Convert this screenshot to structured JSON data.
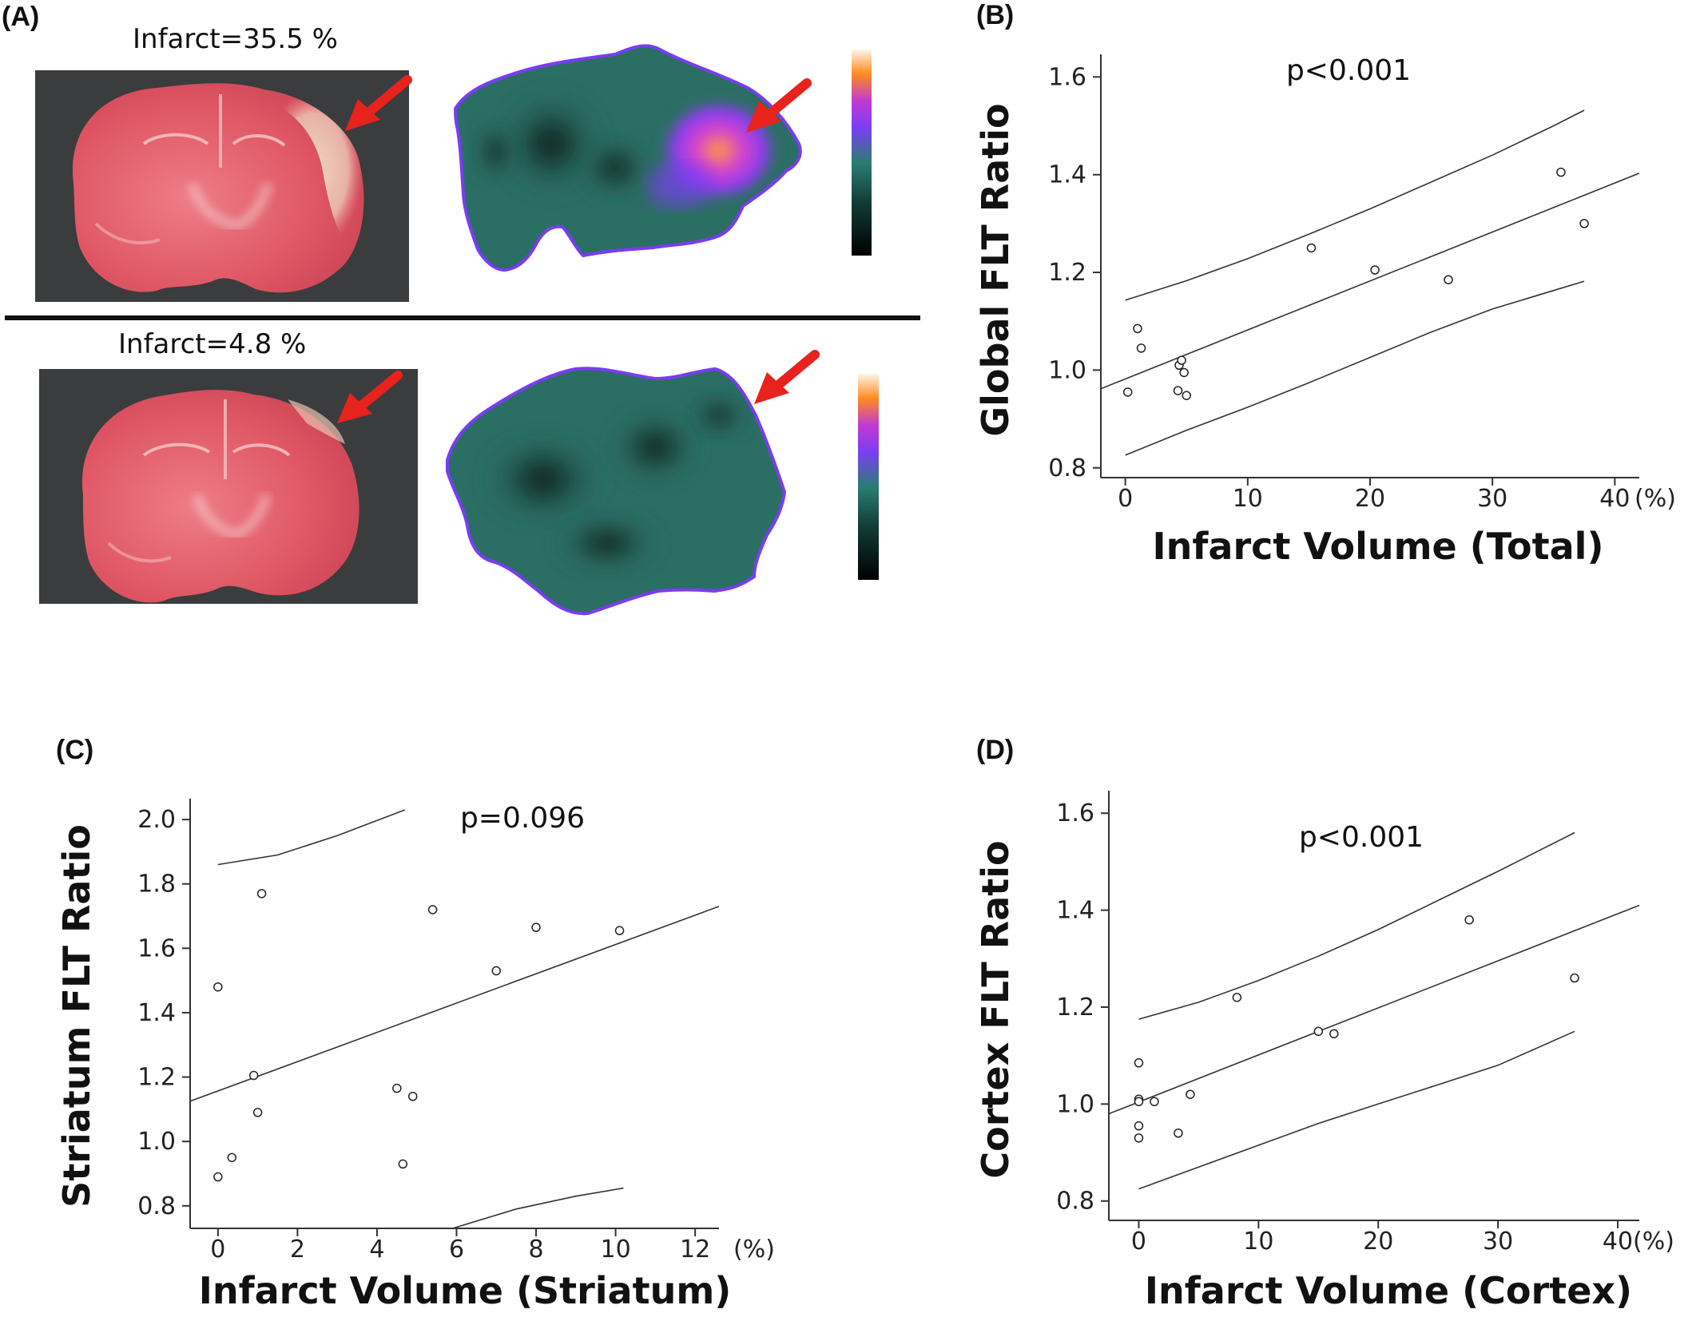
{
  "panels": {
    "A": {
      "label": "(A)",
      "top_caption": "Infarct=35.5 %",
      "bottom_caption": "Infarct=4.8 %"
    }
  },
  "colors": {
    "tissue": "#e05866",
    "arrow": "#e8221c",
    "pet_low": "#0b1512",
    "pet_mid": "#2a6b62",
    "pet_high": "#8a3cf0",
    "pet_hot": "#ff8a1f"
  },
  "chart_data": [
    {
      "id": "B",
      "label": "(B)",
      "type": "scatter",
      "xlabel": "Infarct Volume (Total)",
      "ylabel": "Global FLT Ratio",
      "unit_label": "(%)",
      "annotation": "p<0.001",
      "xlim": [
        -2,
        42
      ],
      "ylim": [
        0.78,
        1.63
      ],
      "xticks": [
        0,
        10,
        20,
        30,
        40
      ],
      "yticks": [
        0.8,
        1.0,
        1.2,
        1.4,
        1.6
      ],
      "ytick_labels": [
        "0.8",
        "1.0",
        "1.2",
        "1.4",
        "1.6"
      ],
      "points": [
        {
          "x": 0.2,
          "y": 0.955
        },
        {
          "x": 1.0,
          "y": 1.085
        },
        {
          "x": 1.3,
          "y": 1.045
        },
        {
          "x": 4.3,
          "y": 0.958
        },
        {
          "x": 4.4,
          "y": 1.01
        },
        {
          "x": 4.6,
          "y": 1.02
        },
        {
          "x": 4.8,
          "y": 0.995
        },
        {
          "x": 5.0,
          "y": 0.948
        },
        {
          "x": 15.2,
          "y": 1.25
        },
        {
          "x": 20.4,
          "y": 1.205
        },
        {
          "x": 26.4,
          "y": 1.185
        },
        {
          "x": 35.6,
          "y": 1.405
        },
        {
          "x": 37.5,
          "y": 1.3
        }
      ],
      "fit": {
        "x": [
          -2,
          42
        ],
        "y": [
          0.962,
          1.403
        ]
      },
      "ci_upper": {
        "x": [
          0,
          5,
          10,
          15,
          20,
          25,
          30,
          35,
          37.5
        ],
        "y": [
          1.143,
          1.183,
          1.228,
          1.278,
          1.33,
          1.385,
          1.44,
          1.5,
          1.532
        ]
      },
      "ci_lower": {
        "x": [
          0,
          5,
          10,
          15,
          20,
          25,
          30,
          35,
          37.5
        ],
        "y": [
          0.826,
          0.877,
          0.924,
          0.974,
          1.026,
          1.078,
          1.125,
          1.163,
          1.182
        ]
      }
    },
    {
      "id": "C",
      "label": "(C)",
      "type": "scatter",
      "xlabel": "Infarct Volume (Striatum)",
      "ylabel": "Striatum FLT Ratio",
      "unit_label": "(%)",
      "annotation": "p=0.096",
      "xlim": [
        -0.7,
        12.6
      ],
      "ylim": [
        0.73,
        2.04
      ],
      "xticks": [
        0,
        2,
        4,
        6,
        8,
        10,
        12
      ],
      "yticks": [
        0.8,
        1.0,
        1.2,
        1.4,
        1.6,
        1.8,
        2.0
      ],
      "ytick_labels": [
        "0.8",
        "1.0",
        "1.2",
        "1.4",
        "1.6",
        "1.8",
        "2.0"
      ],
      "points": [
        {
          "x": 0.0,
          "y": 1.48
        },
        {
          "x": 0.0,
          "y": 0.89
        },
        {
          "x": 0.35,
          "y": 0.95
        },
        {
          "x": 0.9,
          "y": 1.205
        },
        {
          "x": 1.0,
          "y": 1.09
        },
        {
          "x": 1.1,
          "y": 1.77
        },
        {
          "x": 4.5,
          "y": 1.165
        },
        {
          "x": 4.65,
          "y": 0.93
        },
        {
          "x": 4.9,
          "y": 1.14
        },
        {
          "x": 5.4,
          "y": 1.72
        },
        {
          "x": 7.0,
          "y": 1.53
        },
        {
          "x": 8.0,
          "y": 1.665
        },
        {
          "x": 10.1,
          "y": 1.655
        }
      ],
      "fit": {
        "x": [
          -0.7,
          12.6
        ],
        "y": [
          1.125,
          1.73
        ]
      },
      "ci_upper": {
        "x": [
          0,
          1.5,
          3,
          4.7
        ],
        "y": [
          1.86,
          1.89,
          1.95,
          2.03
        ]
      },
      "ci_lower": {
        "x": [
          5.9,
          7.5,
          9,
          10.2
        ],
        "y": [
          0.73,
          0.79,
          0.83,
          0.855
        ]
      }
    },
    {
      "id": "D",
      "label": "(D)",
      "type": "scatter",
      "xlabel": "Infarct Volume (Cortex)",
      "ylabel": "Cortex FLT Ratio",
      "unit_label": "(%)",
      "annotation": "p<0.001",
      "xlim": [
        -2.5,
        41.8
      ],
      "ylim": [
        0.76,
        1.63
      ],
      "xticks": [
        0,
        10,
        20,
        30,
        40
      ],
      "yticks": [
        0.8,
        1.0,
        1.2,
        1.4,
        1.6
      ],
      "ytick_labels": [
        "0.8",
        "1.0",
        "1.2",
        "1.4",
        "1.6"
      ],
      "points": [
        {
          "x": 0.0,
          "y": 1.085
        },
        {
          "x": 0.0,
          "y": 1.01
        },
        {
          "x": 0.0,
          "y": 1.005
        },
        {
          "x": 0.0,
          "y": 0.955
        },
        {
          "x": 0.0,
          "y": 0.93
        },
        {
          "x": 1.3,
          "y": 1.005
        },
        {
          "x": 3.3,
          "y": 0.94
        },
        {
          "x": 4.3,
          "y": 1.02
        },
        {
          "x": 8.2,
          "y": 1.22
        },
        {
          "x": 15.0,
          "y": 1.15
        },
        {
          "x": 16.3,
          "y": 1.145
        },
        {
          "x": 27.6,
          "y": 1.38
        },
        {
          "x": 36.4,
          "y": 1.26
        }
      ],
      "fit": {
        "x": [
          -2.5,
          41.8
        ],
        "y": [
          0.98,
          1.41
        ]
      },
      "ci_upper": {
        "x": [
          0,
          5,
          10,
          15,
          20,
          25,
          30,
          36.4
        ],
        "y": [
          1.175,
          1.21,
          1.255,
          1.305,
          1.36,
          1.42,
          1.48,
          1.56
        ]
      },
      "ci_lower": {
        "x": [
          0,
          5,
          10,
          15,
          20,
          25,
          30,
          36.4
        ],
        "y": [
          0.825,
          0.87,
          0.915,
          0.96,
          1.0,
          1.04,
          1.08,
          1.15
        ]
      }
    }
  ]
}
